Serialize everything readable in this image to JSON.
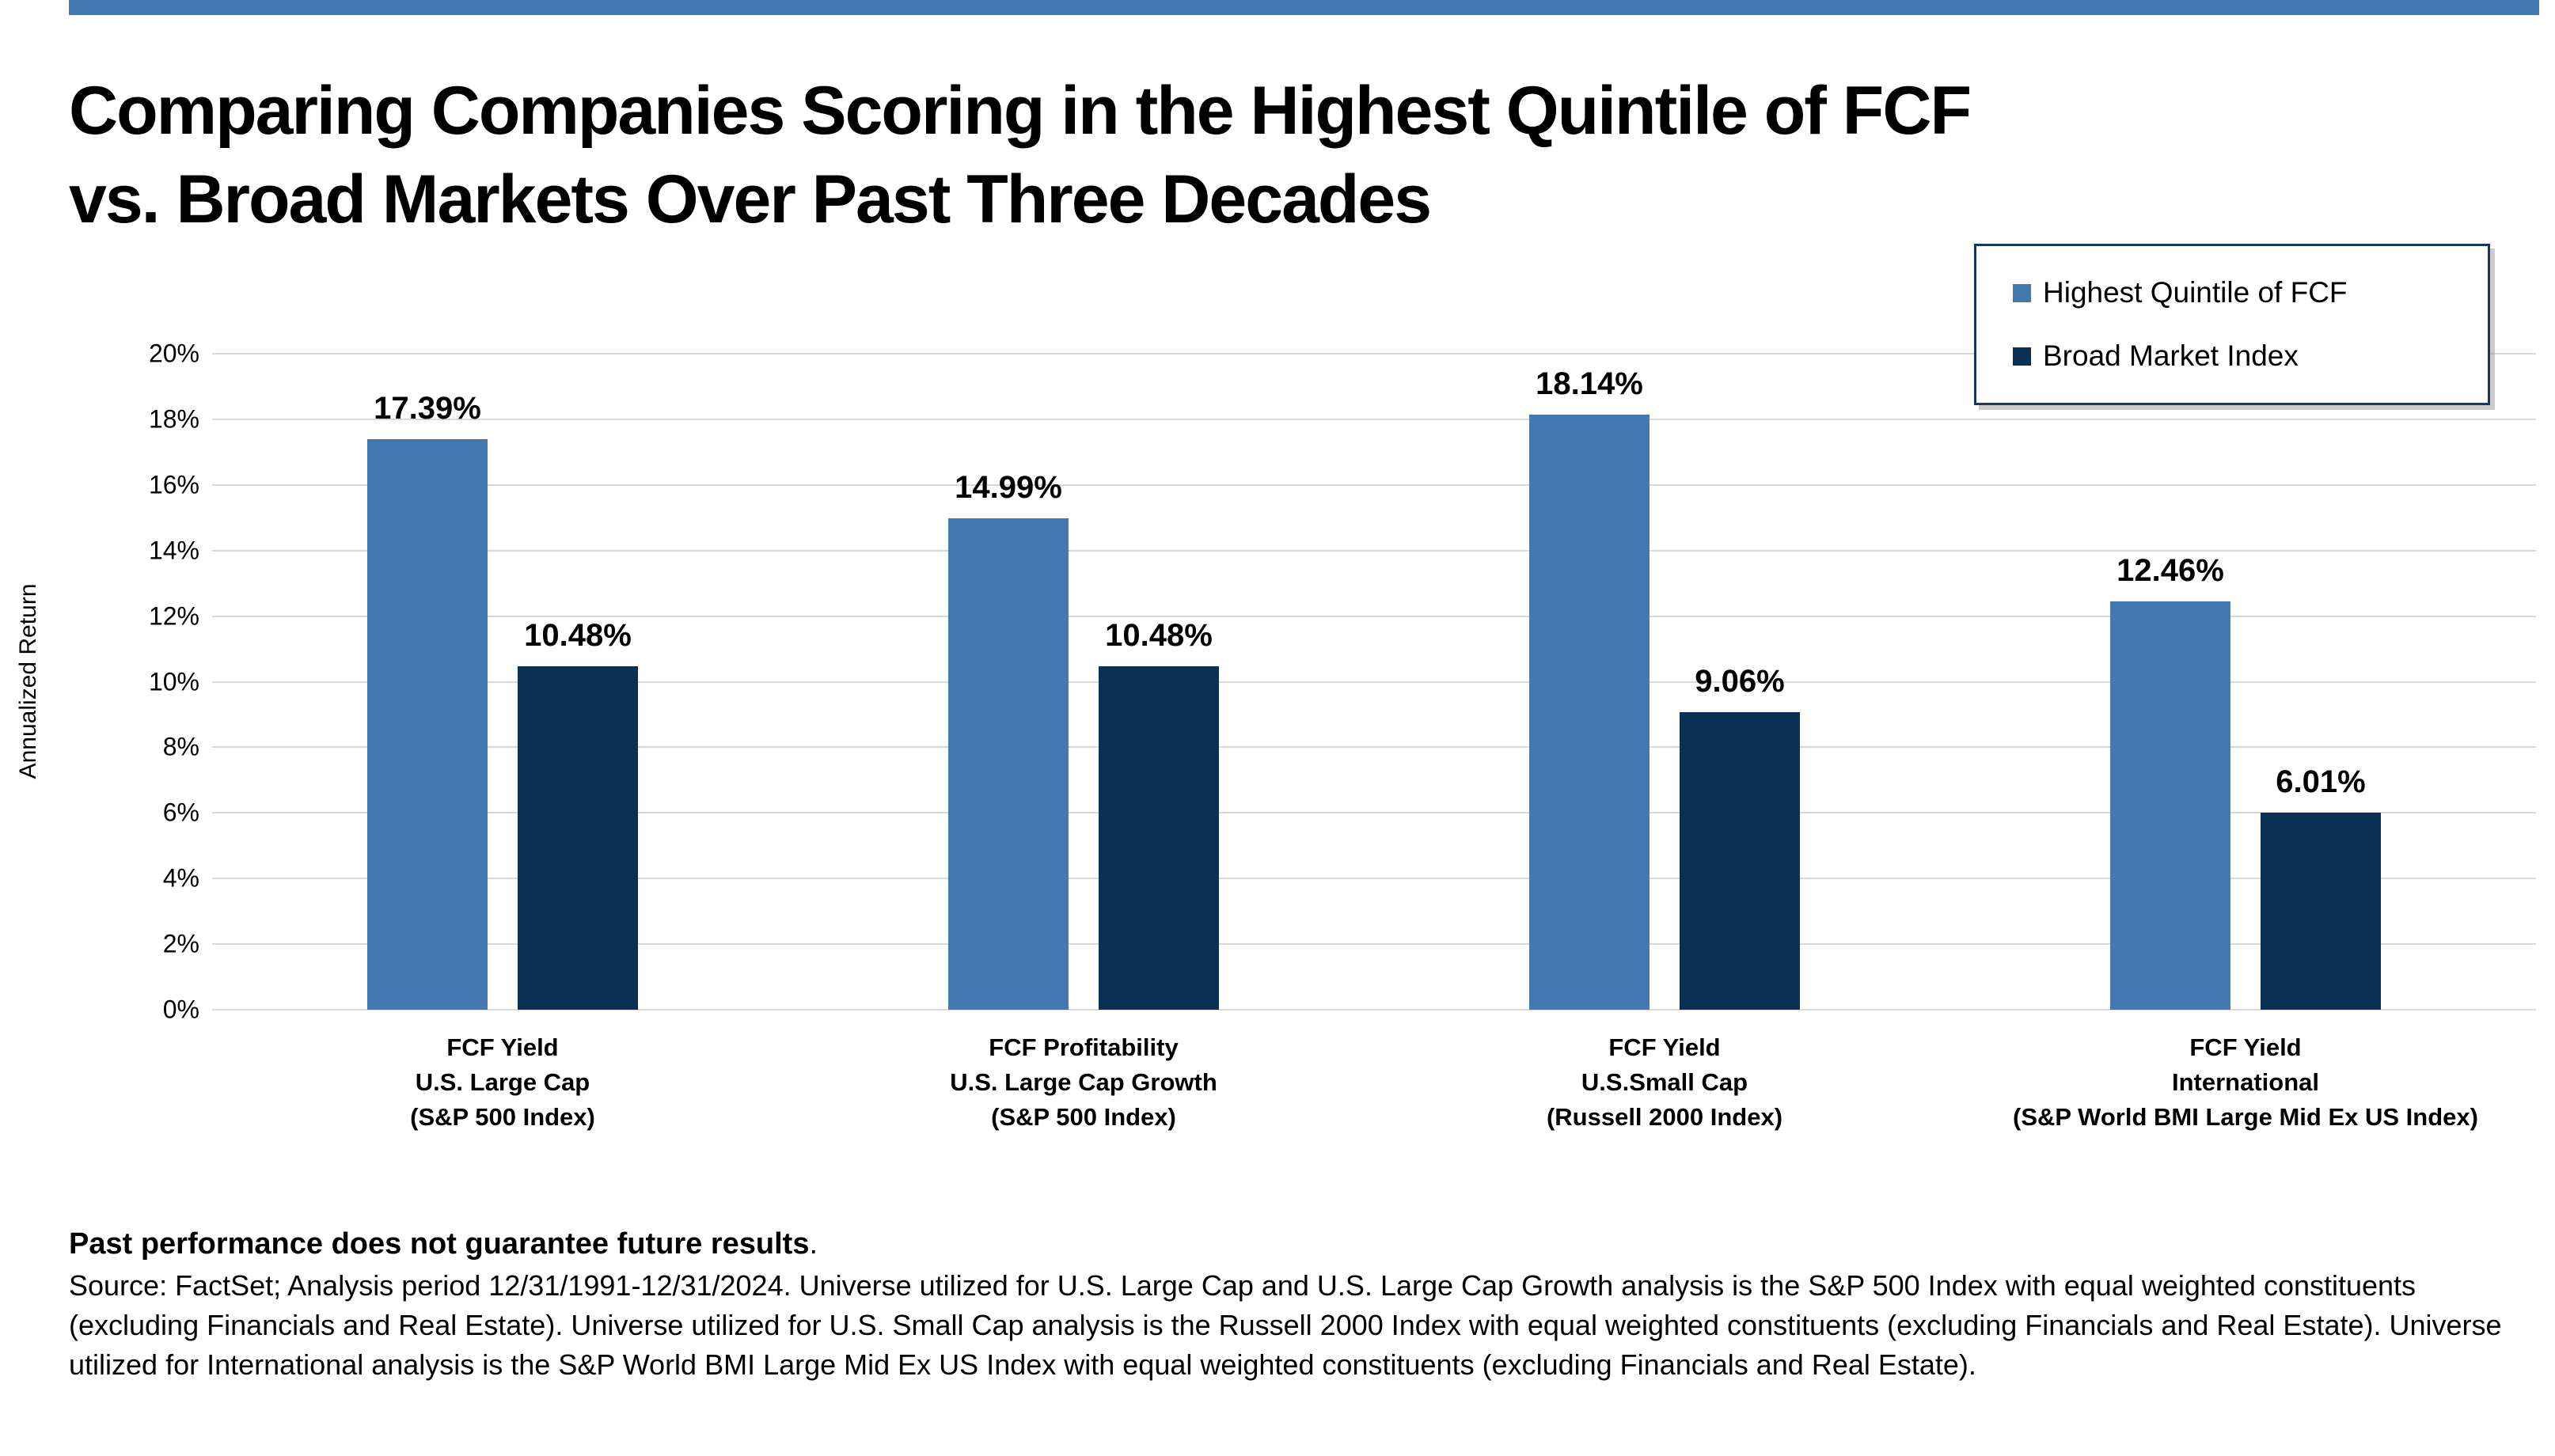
{
  "page": {
    "background": "#ffffff",
    "top_bar_color": "#4478B0"
  },
  "title": {
    "line1": "Comparing Companies Scoring in the Highest Quintile of FCF",
    "line2": "vs. Broad Markets Over Past Three Decades"
  },
  "legend": {
    "items": [
      {
        "label": "Highest Quintile of FCF",
        "color": "#4478B0"
      },
      {
        "label": "Broad Market Index",
        "color": "#0A3153"
      }
    ]
  },
  "chart_data": {
    "type": "bar",
    "categories": [
      [
        "FCF Yield",
        "U.S. Large Cap",
        "(S&P 500 Index)"
      ],
      [
        "FCF Profitability",
        "U.S. Large Cap Growth",
        "(S&P 500 Index)"
      ],
      [
        "FCF Yield",
        "U.S.Small Cap",
        "(Russell 2000 Index)"
      ],
      [
        "FCF Yield",
        "International",
        "(S&P World BMI Large Mid Ex US Index)"
      ]
    ],
    "series": [
      {
        "name": "Highest Quintile of FCF",
        "color": "#4478B0",
        "values": [
          17.39,
          14.99,
          18.14,
          12.46
        ],
        "labels": [
          "17.39%",
          "14.99%",
          "18.14%",
          "12.46%"
        ]
      },
      {
        "name": "Broad Market Index",
        "color": "#0A3153",
        "values": [
          10.48,
          10.48,
          9.06,
          6.01
        ],
        "labels": [
          "10.48%",
          "10.48%",
          "9.06%",
          "6.01%"
        ]
      }
    ],
    "title": "Comparing Companies Scoring in the Highest Quintile of FCF vs. Broad Markets Over Past Three Decades",
    "xlabel": "",
    "ylabel": "Annualized Return",
    "ylim": [
      0,
      20
    ],
    "ytick_step": 2,
    "ytick_suffix": "%",
    "grid": true,
    "gridline_color": "#d9d9d9",
    "legend_position": "top-right"
  },
  "footer": {
    "disclaimer_bold": "Past performance does not guarantee future results",
    "disclaimer_period": ".",
    "source_text": "Source: FactSet; Analysis period 12/31/1991-12/31/2024. Universe utilized for U.S. Large Cap and U.S. Large Cap Growth analysis is the S&P 500 Index with equal weighted constituents (excluding Financials and Real Estate). Universe utilized for U.S. Small Cap analysis is the Russell 2000 Index with equal weighted constituents (excluding Financials and Real Estate). Universe utilized for International analysis is the S&P World BMI Large Mid Ex US Index with equal weighted constituents (excluding Financials and Real Estate)."
  }
}
